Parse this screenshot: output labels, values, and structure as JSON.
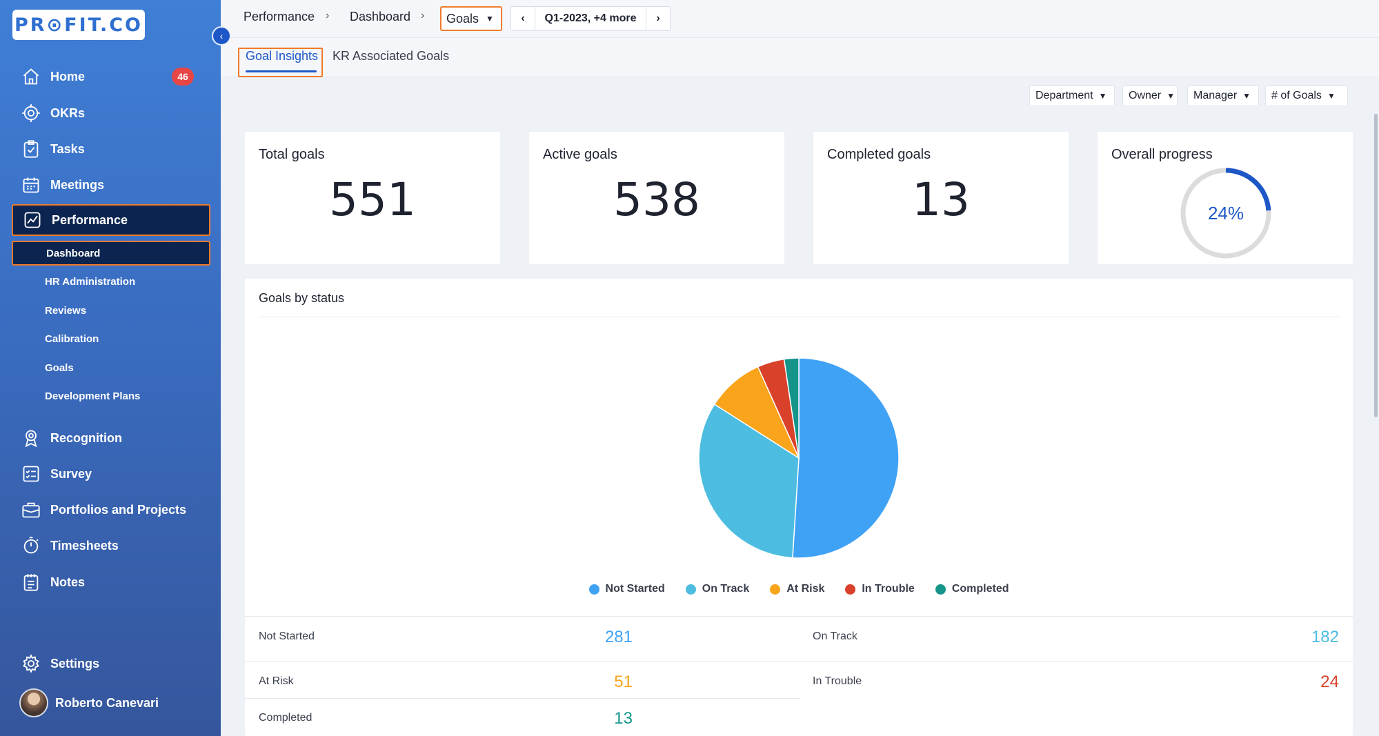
{
  "brand": {
    "logo_text": "PR⊙FIT.CO"
  },
  "sidebar": {
    "items": [
      {
        "label": "Home",
        "icon": "home-icon",
        "badge": "46"
      },
      {
        "label": "OKRs",
        "icon": "target-icon"
      },
      {
        "label": "Tasks",
        "icon": "tasks-icon"
      },
      {
        "label": "Meetings",
        "icon": "calendar-icon"
      },
      {
        "label": "Performance",
        "icon": "performance-icon"
      },
      {
        "label": "Recognition",
        "icon": "recognition-icon"
      },
      {
        "label": "Survey",
        "icon": "survey-icon"
      },
      {
        "label": "Portfolios and Projects",
        "icon": "briefcase-icon"
      },
      {
        "label": "Timesheets",
        "icon": "stopwatch-icon"
      },
      {
        "label": "Notes",
        "icon": "notes-icon"
      },
      {
        "label": "Settings",
        "icon": "gear-icon"
      }
    ],
    "sub_items": [
      "Dashboard",
      "HR Administration",
      "Reviews",
      "Calibration",
      "Goals",
      "Development Plans"
    ],
    "user": {
      "name": "Roberto Canevari"
    }
  },
  "breadcrumb": {
    "items": [
      "Performance",
      "Dashboard"
    ],
    "separator": "›",
    "current": "Goals"
  },
  "period": {
    "label": "Q1-2023, +4 more",
    "prev": "‹",
    "next": "›"
  },
  "tabs": [
    {
      "label": "Goal Insights"
    },
    {
      "label": "KR Associated Goals"
    }
  ],
  "filters": [
    "Department",
    "Owner",
    "Manager",
    "# of Goals"
  ],
  "cards": {
    "total": {
      "title": "Total goals",
      "value": "551"
    },
    "active": {
      "title": "Active goals",
      "value": "538"
    },
    "completed": {
      "title": "Completed goals",
      "value": "13"
    },
    "progress": {
      "title": "Overall progress",
      "value": "24%",
      "fraction": 0.24
    }
  },
  "colors": {
    "not_started": "#3fa2f5",
    "on_track": "#4cbde0",
    "at_risk": "#f9a41b",
    "in_trouble": "#d9412b",
    "completed": "#15958a",
    "accent": "#1d57c7"
  },
  "status_panel": {
    "title": "Goals by status",
    "rows": [
      {
        "label": "Not Started",
        "value": "281"
      },
      {
        "label": "On Track",
        "value": "182"
      },
      {
        "label": "At Risk",
        "value": "51"
      },
      {
        "label": "In Trouble",
        "value": "24"
      },
      {
        "label": "Completed",
        "value": "13"
      }
    ]
  },
  "chart_data": {
    "type": "pie",
    "title": "Goals by status",
    "categories": [
      "Not Started",
      "On Track",
      "At Risk",
      "In Trouble",
      "Completed"
    ],
    "values": [
      281,
      182,
      51,
      24,
      13
    ],
    "legend_position": "bottom"
  }
}
